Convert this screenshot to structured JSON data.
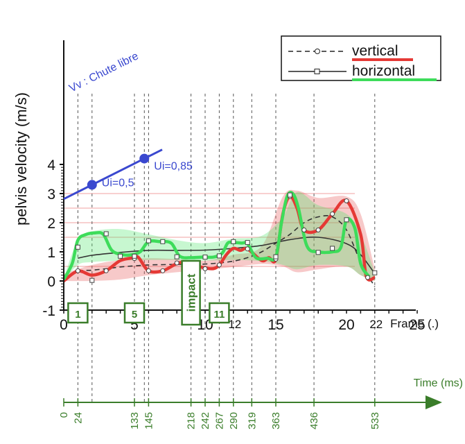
{
  "chart_data": {
    "type": "line",
    "ylabel": "pelvis velocity (m/s)",
    "xlabel": "Frame (.)",
    "time_label": "Time (ms)",
    "xlim": [
      0,
      25
    ],
    "ylim": [
      -1,
      4
    ],
    "x_ticks": [
      {
        "value": 0,
        "label": "0"
      },
      {
        "value": 5,
        "label": "5"
      },
      {
        "value": 10,
        "label": "10"
      },
      {
        "value": 15,
        "label": "15"
      },
      {
        "value": 20,
        "label": "20"
      },
      {
        "value": 25,
        "label": "25"
      }
    ],
    "x_extra_ticks": [
      {
        "value": 12,
        "label": "12"
      },
      {
        "value": 22,
        "label": "22"
      }
    ],
    "y_ticks": [
      {
        "value": -1,
        "label": "-1"
      },
      {
        "value": 0,
        "label": "0"
      },
      {
        "value": 1,
        "label": "1"
      },
      {
        "value": 2,
        "label": "2"
      },
      {
        "value": 3,
        "label": "3"
      },
      {
        "value": 4,
        "label": "4"
      }
    ],
    "ref_lines_y": [
      0.5,
      1.5,
      2,
      2.5,
      3
    ],
    "time_ticks": [
      {
        "frame": 0,
        "label": "0"
      },
      {
        "frame": 1,
        "label": "24"
      },
      {
        "frame": 5,
        "label": "133"
      },
      {
        "frame": 6,
        "label": "145"
      },
      {
        "frame": 9,
        "label": "218"
      },
      {
        "frame": 10,
        "label": "242"
      },
      {
        "frame": 11,
        "label": "267"
      },
      {
        "frame": 12,
        "label": "290"
      },
      {
        "frame": 13.3,
        "label": "319"
      },
      {
        "frame": 15,
        "label": "363"
      },
      {
        "frame": 17.7,
        "label": "436"
      },
      {
        "frame": 22,
        "label": "533"
      }
    ],
    "phase_boxes": [
      {
        "frame": 1,
        "label": "1"
      },
      {
        "frame": 5,
        "label": "5"
      },
      {
        "frame": 9,
        "label": "impact",
        "vertical": true
      },
      {
        "frame": 11,
        "label": "11"
      }
    ],
    "free_fall": {
      "label": "Vv : Chute libre",
      "points": [
        {
          "frame": 2,
          "value": 3.3,
          "label": "Ui=0,5"
        },
        {
          "frame": 5.7,
          "value": 4.2,
          "label": "Ui=0,85"
        }
      ]
    },
    "legend": {
      "placement": "top-right",
      "items": [
        {
          "name": "vertical",
          "style": "dashed-circle",
          "color": "#e53935"
        },
        {
          "name": "horizontal",
          "style": "solid-square",
          "color": "#3ddc5a"
        }
      ]
    },
    "series": [
      {
        "name": "vertical",
        "role": "mean",
        "x": [
          0,
          1,
          2,
          3,
          4,
          5,
          6,
          7,
          8,
          9,
          10,
          11,
          12,
          13,
          14,
          15,
          16,
          17,
          18,
          19,
          20,
          21,
          22
        ],
        "values": [
          0.05,
          0.33,
          0.37,
          0.42,
          0.48,
          0.52,
          0.55,
          0.56,
          0.57,
          0.57,
          0.58,
          0.62,
          0.68,
          0.8,
          1.0,
          1.3,
          1.6,
          2.0,
          2.2,
          2.2,
          1.75,
          0.65,
          -0.2
        ]
      },
      {
        "name": "horizontal",
        "role": "mean",
        "x": [
          1,
          2,
          4,
          6,
          8,
          10,
          12,
          14,
          16,
          18,
          20,
          21,
          22
        ],
        "values": [
          0.78,
          0.88,
          0.98,
          1.05,
          1.05,
          1.06,
          1.12,
          1.22,
          1.42,
          1.5,
          1.28,
          0.9,
          0.25
        ]
      },
      {
        "name": "vertical",
        "role": "median",
        "x": [
          0,
          1,
          2,
          3,
          4,
          5,
          5.3,
          6,
          7,
          8,
          8.5,
          9.5,
          10.5,
          11,
          11.5,
          12,
          12.5,
          13,
          14,
          14.5,
          15,
          15.5,
          16,
          16.5,
          17,
          18,
          19,
          20,
          21,
          21.4,
          22
        ],
        "values": [
          0.0,
          0.34,
          0.2,
          0.35,
          0.7,
          0.8,
          0.8,
          0.35,
          0.35,
          0.6,
          0.62,
          0.5,
          0.42,
          0.55,
          0.9,
          1.12,
          1.05,
          1.1,
          0.7,
          0.8,
          0.75,
          2.3,
          2.9,
          2.5,
          1.75,
          1.75,
          2.3,
          2.75,
          1.6,
          0.15,
          0.12
        ]
      },
      {
        "name": "horizontal",
        "role": "median",
        "x": [
          0,
          0.6,
          1,
          1.6,
          2.2,
          2.8,
          3.4,
          4.2,
          4.8,
          5.4,
          6,
          6.8,
          7.6,
          8.2,
          9,
          9.8,
          10.6,
          11.2,
          11.6,
          12,
          12.6,
          13,
          13.6,
          14.4,
          15,
          15.4,
          15.8,
          16.2,
          16.6,
          17.2,
          18,
          19,
          19.6,
          20,
          20.6,
          21,
          21.6
        ],
        "values": [
          0.05,
          0.6,
          1.4,
          1.6,
          1.65,
          1.6,
          1.05,
          0.9,
          0.9,
          1.0,
          1.35,
          1.35,
          1.3,
          0.85,
          0.8,
          0.82,
          0.82,
          0.95,
          1.3,
          1.32,
          1.3,
          1.28,
          0.8,
          0.78,
          0.82,
          2.0,
          2.9,
          3.0,
          2.5,
          1.2,
          1.0,
          1.0,
          1.15,
          2.1,
          1.8,
          0.6,
          0.15
        ]
      }
    ],
    "bands": [
      {
        "name": "vertical",
        "x": [
          0,
          2,
          4,
          6,
          8,
          10,
          12,
          14,
          15.5,
          16.5,
          18,
          20,
          21,
          22
        ],
        "upper": [
          0.25,
          0.55,
          0.72,
          0.78,
          0.75,
          0.7,
          0.9,
          1.2,
          2.9,
          3.1,
          2.85,
          2.9,
          2.3,
          0.4
        ],
        "lower": [
          0.0,
          0.0,
          0.05,
          0.2,
          0.3,
          0.38,
          0.48,
          0.58,
          0.5,
          0.3,
          0.4,
          0.5,
          0.2,
          0.0
        ]
      },
      {
        "name": "horizontal",
        "x": [
          0,
          1,
          2,
          4,
          6,
          8,
          10,
          12,
          14,
          15.5,
          16.5,
          18,
          20,
          21,
          22
        ],
        "upper": [
          0.1,
          1.4,
          1.7,
          1.78,
          1.6,
          1.4,
          1.3,
          1.45,
          1.55,
          2.2,
          3.05,
          2.6,
          2.3,
          1.6,
          0.3
        ],
        "lower": [
          0.0,
          0.55,
          0.65,
          0.7,
          0.72,
          0.72,
          0.7,
          0.72,
          0.68,
          0.55,
          0.4,
          0.55,
          0.5,
          0.2,
          0.0
        ]
      }
    ],
    "marker_points": {
      "vertical_circles": [
        [
          1,
          0.35
        ],
        [
          3,
          0.35
        ],
        [
          5,
          0.77
        ],
        [
          6,
          0.35
        ],
        [
          7,
          0.35
        ],
        [
          8,
          0.62
        ],
        [
          10,
          0.42
        ],
        [
          11,
          0.55
        ],
        [
          13,
          1.1
        ],
        [
          15,
          0.75
        ],
        [
          16,
          2.9
        ],
        [
          17,
          1.75
        ],
        [
          18,
          1.75
        ],
        [
          19,
          2.3
        ],
        [
          20,
          2.75
        ],
        [
          21.5,
          0.12
        ]
      ],
      "horizontal_squares": [
        [
          1,
          1.16
        ],
        [
          2,
          0.02
        ],
        [
          3,
          1.62
        ],
        [
          4,
          0.85
        ],
        [
          5,
          0.85
        ],
        [
          6,
          1.38
        ],
        [
          7,
          1.35
        ],
        [
          8,
          0.83
        ],
        [
          10,
          0.82
        ],
        [
          11,
          0.86
        ],
        [
          12,
          1.35
        ],
        [
          13,
          1.32
        ],
        [
          15,
          0.83
        ],
        [
          16,
          2.95
        ],
        [
          18,
          0.98
        ],
        [
          19,
          1.12
        ],
        [
          20,
          2.1
        ],
        [
          22,
          0.28
        ]
      ]
    }
  }
}
